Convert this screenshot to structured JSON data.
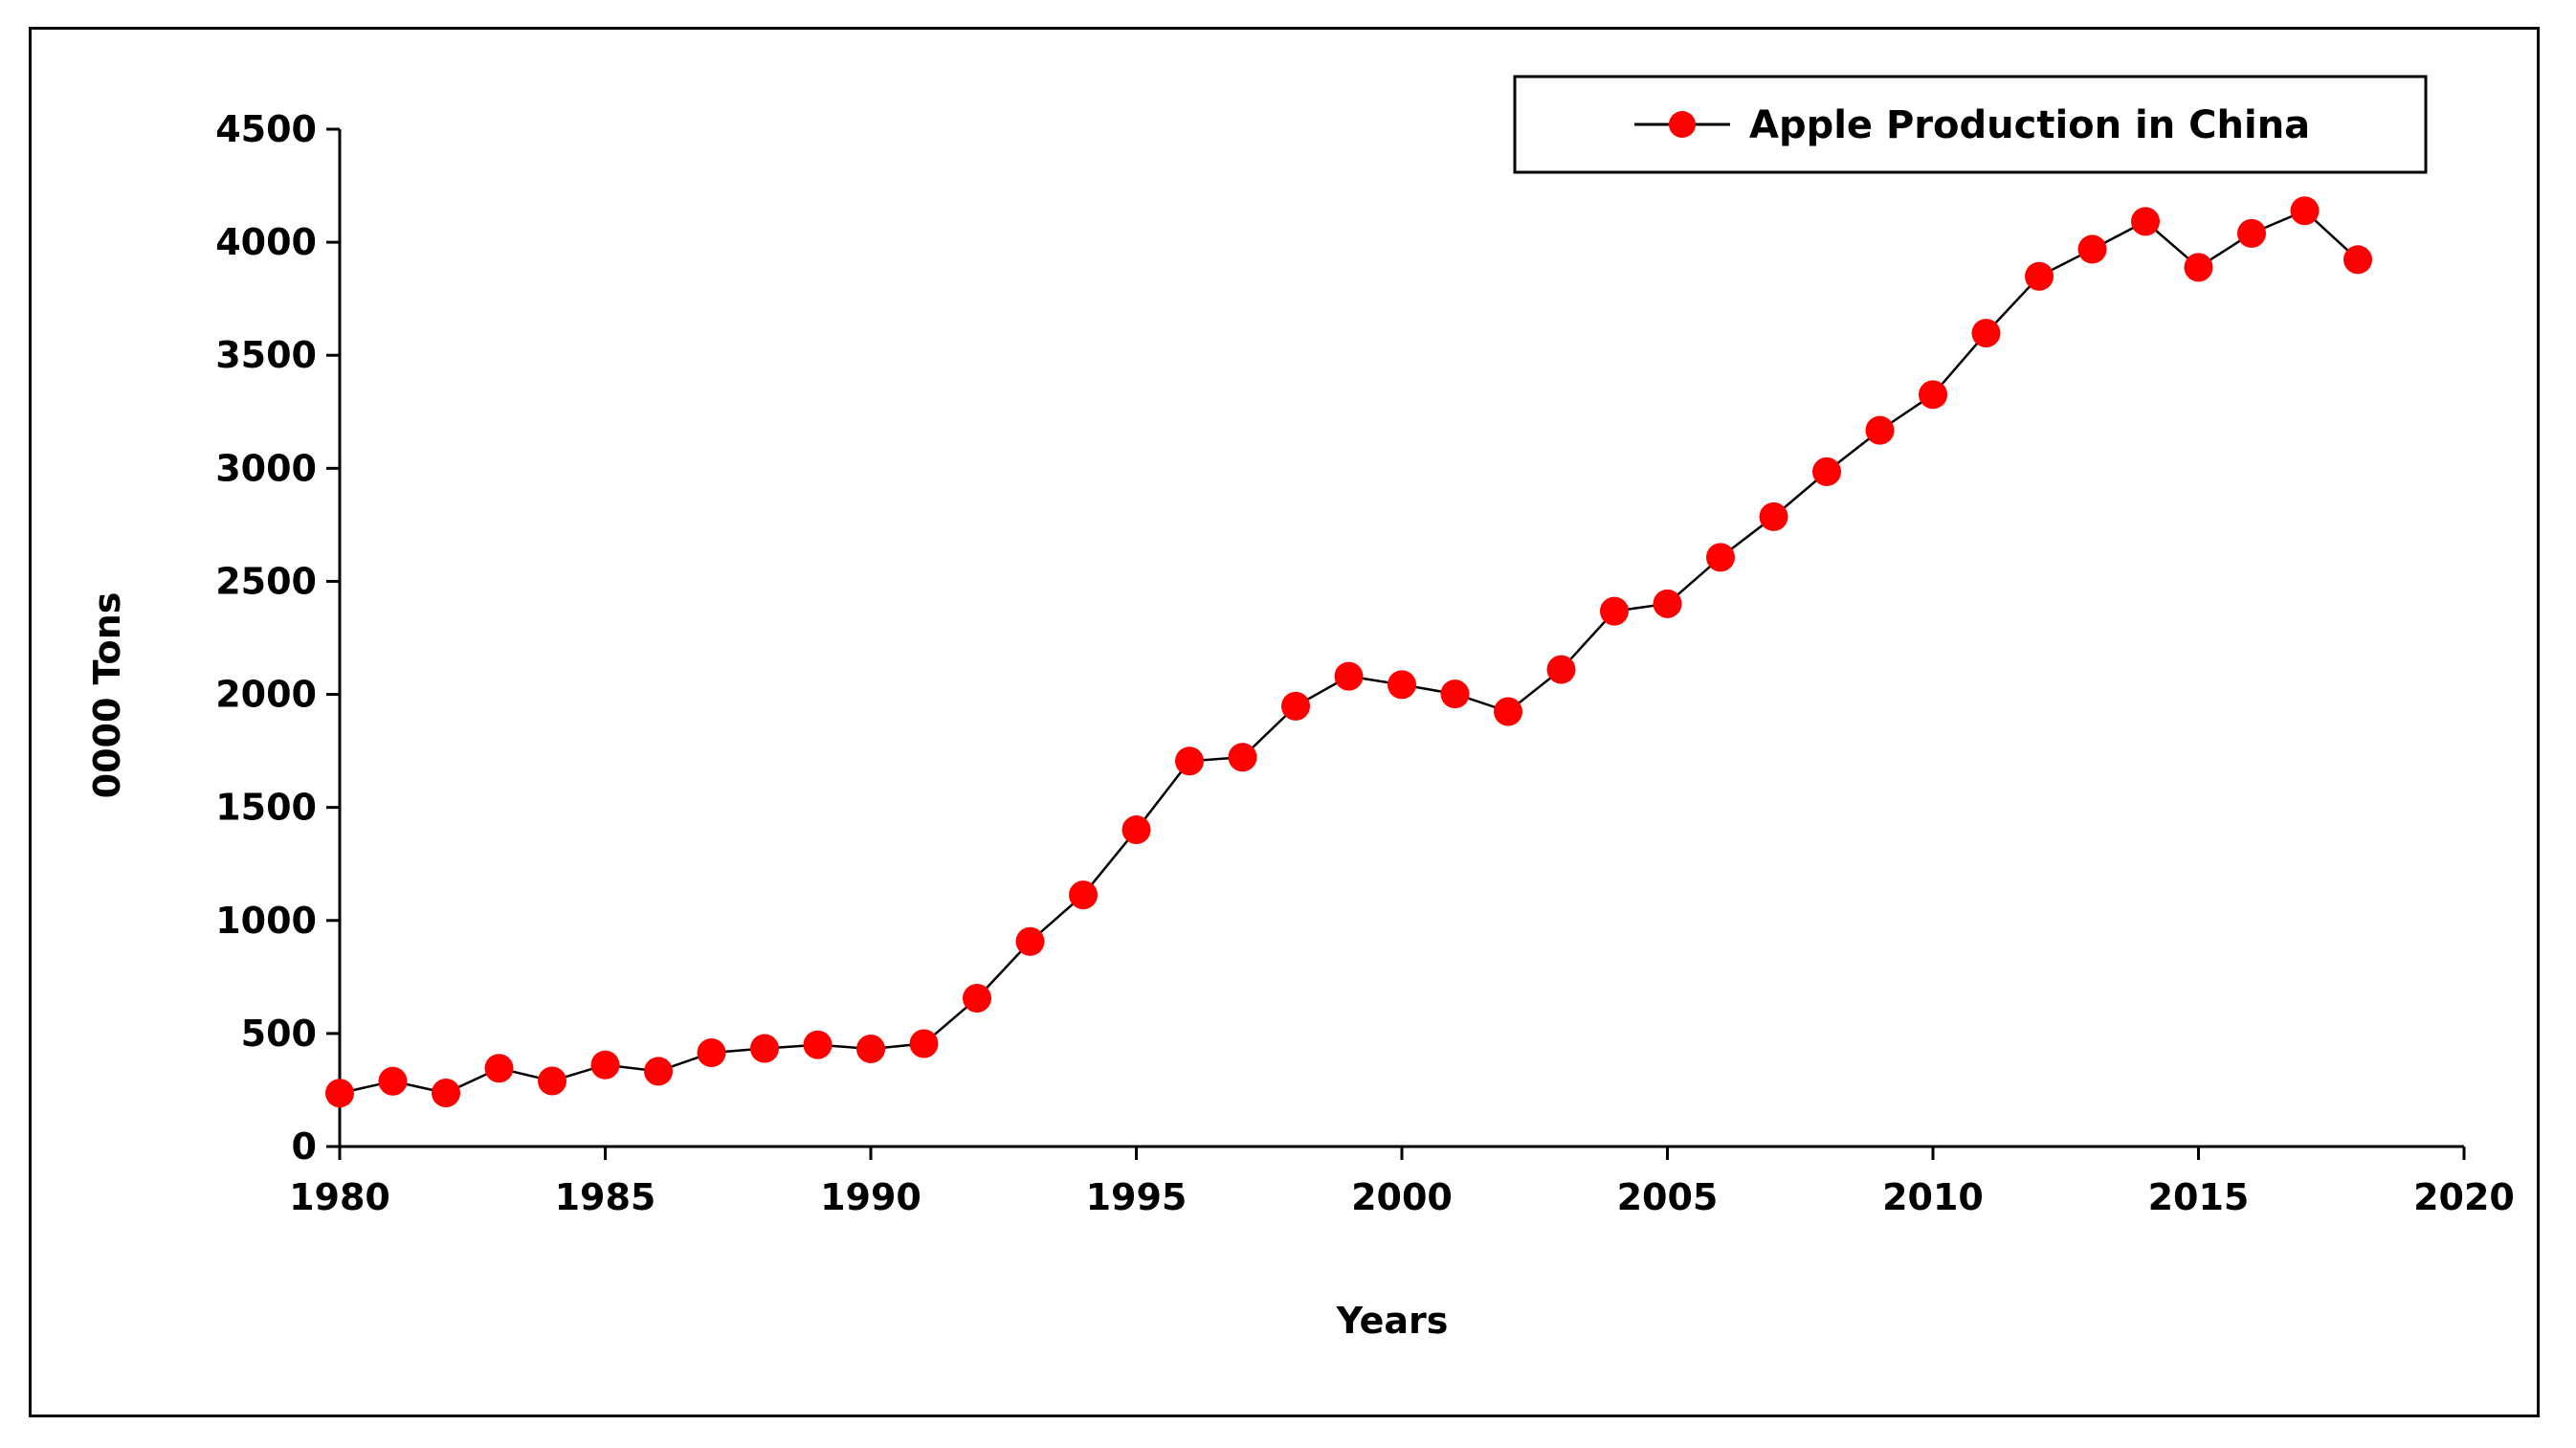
{
  "chart_data": {
    "type": "line",
    "title": "",
    "xlabel": "Years",
    "ylabel": "0000 Tons",
    "xlim": [
      1980,
      2020
    ],
    "ylim": [
      0,
      4500
    ],
    "xticks": [
      1980,
      1985,
      1990,
      1995,
      2000,
      2005,
      2010,
      2015,
      2020
    ],
    "yticks": [
      0,
      500,
      1000,
      1500,
      2000,
      2500,
      3000,
      3500,
      4000,
      4500
    ],
    "legend_position": "top-right",
    "series": [
      {
        "name": "Apple Production in China",
        "color": "#ff0000",
        "line_color": "#000000",
        "marker": "circle",
        "x": [
          1980,
          1981,
          1982,
          1983,
          1984,
          1985,
          1986,
          1987,
          1988,
          1989,
          1990,
          1991,
          1992,
          1993,
          1994,
          1995,
          1996,
          1997,
          1998,
          1999,
          2000,
          2001,
          2002,
          2003,
          2004,
          2005,
          2006,
          2007,
          2008,
          2009,
          2010,
          2011,
          2012,
          2013,
          2014,
          2015,
          2016,
          2017,
          2018
        ],
        "values": [
          236,
          289,
          237,
          346,
          290,
          361,
          333,
          415,
          434,
          450,
          432,
          455,
          656,
          907,
          1113,
          1401,
          1705,
          1722,
          1948,
          2080,
          2043,
          2002,
          1924,
          2110,
          2368,
          2401,
          2606,
          2786,
          2985,
          3168,
          3326,
          3598,
          3849,
          3969,
          4092,
          3889,
          4039,
          4139,
          3923
        ]
      }
    ]
  }
}
